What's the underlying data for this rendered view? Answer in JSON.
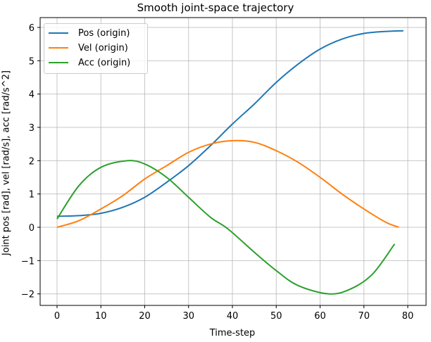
{
  "chart_data": {
    "type": "line",
    "title": "Smooth joint-space trajectory",
    "xlabel": "Time-step",
    "ylabel": "Joint pos [rad], vel [rad/s], acc [rad/s^2]",
    "xlim": [
      -4,
      83
    ],
    "ylim": [
      -2.3,
      6.3
    ],
    "xticks": [
      0,
      10,
      20,
      30,
      40,
      50,
      60,
      70,
      80
    ],
    "yticks": [
      -2,
      -1,
      0,
      1,
      2,
      3,
      4,
      5,
      6
    ],
    "grid": true,
    "legend_position": "upper left",
    "series": [
      {
        "name": "Pos (origin)",
        "color": "#1f77b4",
        "x": [
          0,
          5,
          10,
          15,
          20,
          25,
          30,
          35,
          40,
          45,
          50,
          55,
          60,
          65,
          70,
          75,
          79
        ],
        "values": [
          0.33,
          0.35,
          0.42,
          0.6,
          0.9,
          1.35,
          1.85,
          2.45,
          3.1,
          3.7,
          4.35,
          4.9,
          5.35,
          5.65,
          5.82,
          5.88,
          5.9
        ]
      },
      {
        "name": "Vel (origin)",
        "color": "#ff7f0e",
        "x": [
          0,
          5,
          10,
          15,
          20,
          25,
          30,
          35,
          40,
          45,
          50,
          55,
          60,
          65,
          70,
          75,
          78
        ],
        "values": [
          0.0,
          0.2,
          0.55,
          0.95,
          1.45,
          1.85,
          2.25,
          2.5,
          2.6,
          2.55,
          2.3,
          1.95,
          1.5,
          1.0,
          0.55,
          0.15,
          0.0
        ]
      },
      {
        "name": "Acc (origin)",
        "color": "#2ca02c",
        "x": [
          0,
          5,
          10,
          16,
          20,
          25,
          30,
          35,
          39,
          45,
          50,
          55,
          62,
          67,
          72,
          77
        ],
        "values": [
          0.25,
          1.25,
          1.8,
          2.0,
          1.9,
          1.5,
          0.9,
          0.3,
          -0.05,
          -0.75,
          -1.3,
          -1.75,
          -2.0,
          -1.85,
          -1.4,
          -0.5
        ]
      }
    ]
  }
}
